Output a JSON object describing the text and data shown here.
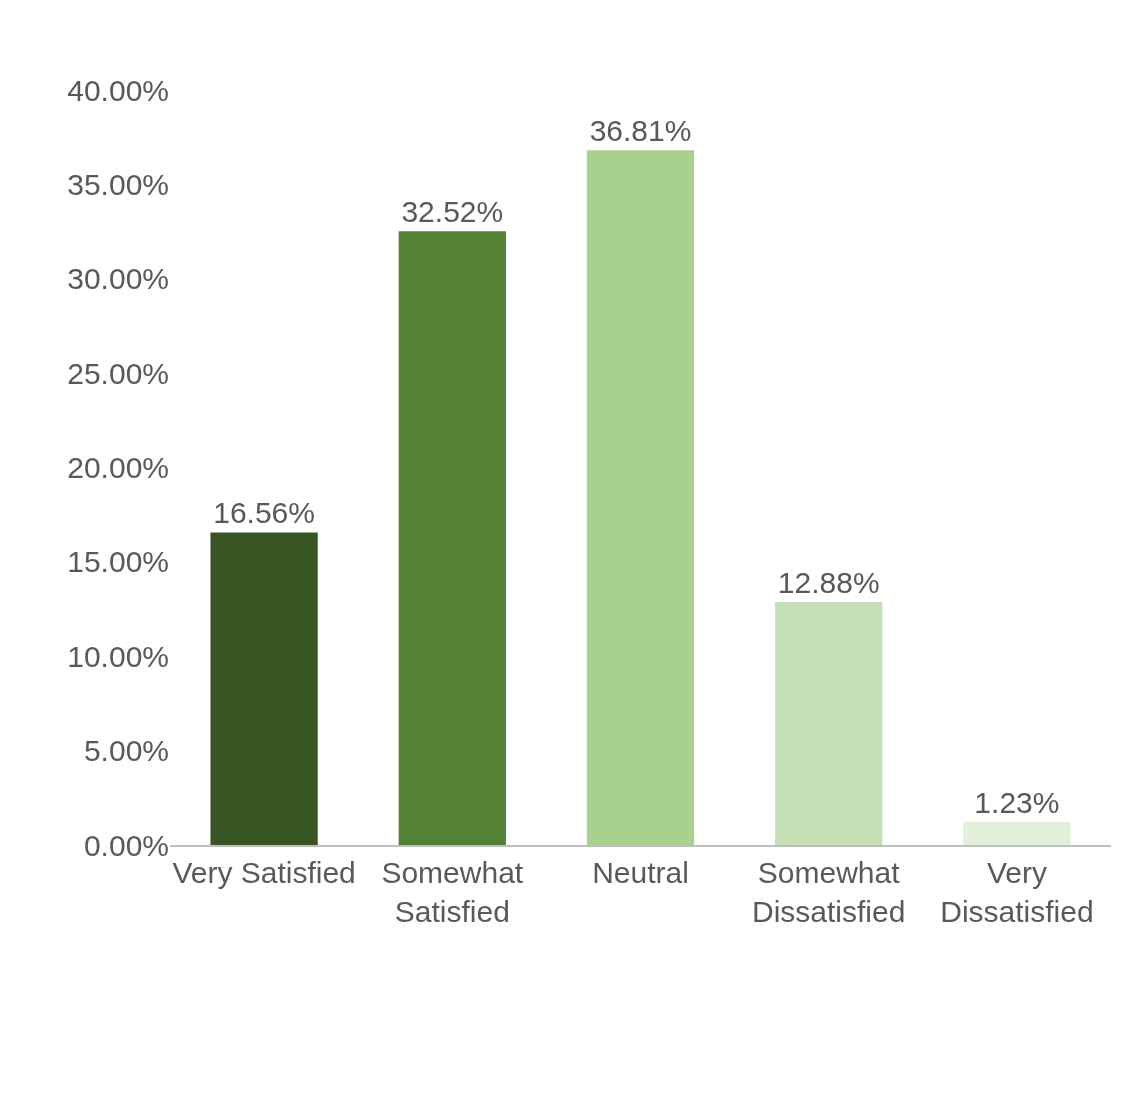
{
  "chart_data": {
    "type": "bar",
    "categories": [
      "Very Satisfied",
      "Somewhat\nSatisfied",
      "Neutral",
      "Somewhat\nDissatisfied",
      "Very\nDissatisfied"
    ],
    "values": [
      16.56,
      32.52,
      36.81,
      12.88,
      1.23
    ],
    "colors": [
      "#375623",
      "#548235",
      "#a9d18e",
      "#c5e0b4",
      "#e2efd9"
    ],
    "value_labels": [
      "16.56%",
      "32.52%",
      "36.81%",
      "12.88%",
      "1.23%"
    ],
    "ylim": [
      0,
      40
    ],
    "yticks": [
      {
        "value": 0,
        "label": "0.00%"
      },
      {
        "value": 5,
        "label": "5.00%"
      },
      {
        "value": 10,
        "label": "10.00%"
      },
      {
        "value": 15,
        "label": "15.00%"
      },
      {
        "value": 20,
        "label": "20.00%"
      },
      {
        "value": 25,
        "label": "25.00%"
      },
      {
        "value": 30,
        "label": "30.00%"
      },
      {
        "value": 35,
        "label": "35.00%"
      },
      {
        "value": 40,
        "label": "40.00%"
      }
    ],
    "legend": false
  }
}
